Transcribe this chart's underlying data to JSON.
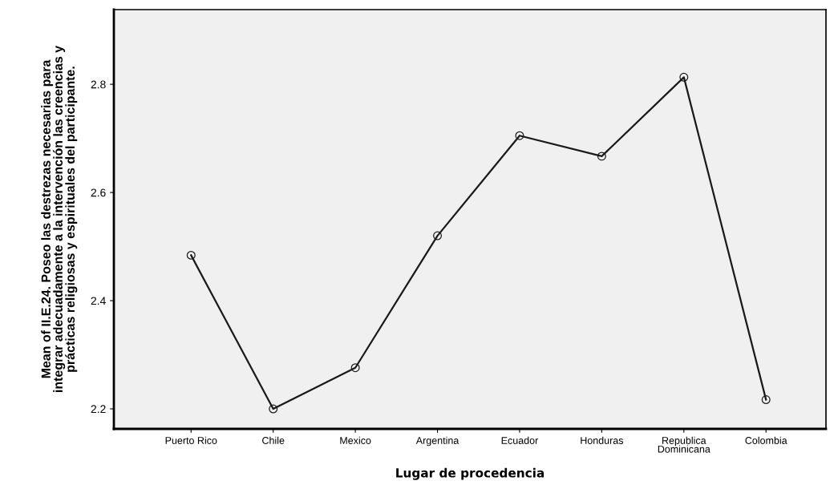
{
  "chart_data": {
    "type": "line",
    "xlabel": "Lugar de procedencia",
    "ylabel": "Mean of II.E.24. Poseo las destrezas necesarias para\nintegrar adecuadamente a la intervención las creencias y\nprácticas religiosas y espirituales del participante.",
    "categories": [
      "Puerto Rico",
      "Chile",
      "Mexico",
      "Argentina",
      "Ecuador",
      "Honduras",
      "Republica\nDominicana",
      "Colombia"
    ],
    "series": [
      {
        "color": "#1a1a1a",
        "values": [
          2.484,
          2.2,
          2.276,
          2.52,
          2.705,
          2.667,
          2.813,
          2.217
        ]
      }
    ],
    "ylim": [
      2.163,
      2.938
    ],
    "yticks": [
      2.2,
      2.4,
      2.6,
      2.8
    ],
    "grid": false,
    "marker": "circle",
    "line_style": "solid"
  }
}
